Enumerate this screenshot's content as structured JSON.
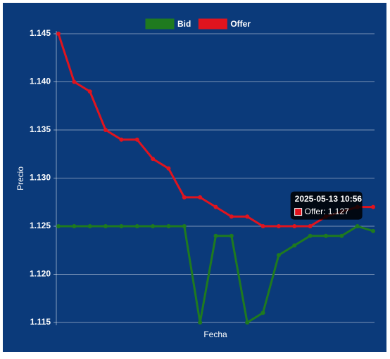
{
  "chart_data": {
    "type": "line",
    "legend": "top",
    "grid": true,
    "background": "#0b3a7a",
    "y_label": "Precio",
    "x_label": "Fecha",
    "categories": [
      null,
      null,
      null,
      null,
      null,
      null,
      null,
      null,
      null,
      null,
      null,
      null,
      null,
      null,
      null,
      null,
      null,
      null,
      null,
      null,
      null
    ],
    "ylim": [
      1.115,
      1.145
    ],
    "yticks": [
      1.115,
      {
        "value": 1.12,
        "label": "1.120"
      },
      1.125,
      {
        "value": 1.13,
        "label": "1.130"
      },
      1.135,
      {
        "value": 1.14,
        "label": "1.140"
      },
      1.145
    ],
    "series": [
      {
        "name": "Bid",
        "color": "#1f7a1f",
        "values": [
          1.125,
          1.125,
          1.125,
          1.125,
          1.125,
          1.125,
          1.125,
          1.125,
          1.125,
          1.115,
          1.124,
          1.124,
          1.115,
          1.116,
          1.122,
          1.123,
          1.124,
          1.124,
          1.124,
          1.125,
          1.1245
        ]
      },
      {
        "name": "Offer",
        "color": "#e0141e",
        "values": [
          1.145,
          1.14,
          1.139,
          1.135,
          1.134,
          1.134,
          1.132,
          1.131,
          1.128,
          1.128,
          1.127,
          1.126,
          1.126,
          1.125,
          1.125,
          1.125,
          1.125,
          1.126,
          1.1265,
          1.127,
          1.127
        ]
      }
    ],
    "tooltip": {
      "title": "2025-05-13 10:56",
      "label": "Offer: 1.127"
    }
  }
}
